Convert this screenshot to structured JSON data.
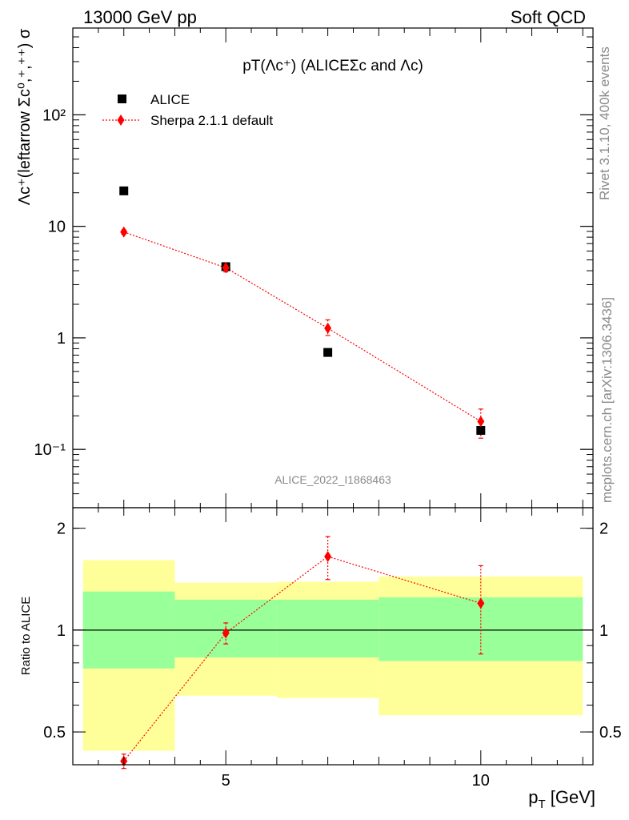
{
  "header": {
    "left": "13000 GeV pp",
    "right": "Soft QCD"
  },
  "side_labels": {
    "rivet": "Rivet 3.1.10,  400k events",
    "mcplots": "mcplots.cern.ch [arXiv:1306.3436]"
  },
  "colors": {
    "data": "#000000",
    "mc": "#ff0000",
    "band_outer": "#ffff99",
    "band_inner": "#99ff99"
  },
  "chart_data": [
    {
      "type": "scatter",
      "title": "pT(Λc⁺) (ALICEΣc and Λc)",
      "ylabel": "Λc⁺(leftarrow Σc⁰,⁺,⁺⁺) σ",
      "xlabel": "",
      "yscale": "log",
      "xlim": [
        2,
        12.2
      ],
      "ylim": [
        0.03,
        600
      ],
      "x_ticks": [
        5,
        10
      ],
      "y_ticks": [
        {
          "value": 0.1,
          "label": "10⁻¹"
        },
        {
          "value": 1,
          "label": "1"
        },
        {
          "value": 10,
          "label": "10"
        },
        {
          "value": 100,
          "label": "10²"
        }
      ],
      "legend_position": "top-left",
      "watermark": "ALICE_2022_I1868463",
      "series": [
        {
          "name": "ALICE",
          "marker": "square",
          "points": [
            {
              "x": 3,
              "y": 20.8
            },
            {
              "x": 5,
              "y": 4.35
            },
            {
              "x": 7,
              "y": 0.74
            },
            {
              "x": 10,
              "y": 0.148
            }
          ]
        },
        {
          "name": "Sherpa 2.1.1 default",
          "marker": "diamond",
          "line": "dotted",
          "points": [
            {
              "x": 3,
              "y": 8.9,
              "err_lo": 0.4,
              "err_hi": 0.4
            },
            {
              "x": 5,
              "y": 4.25,
              "err_lo": 0.35,
              "err_hi": 0.35
            },
            {
              "x": 7,
              "y": 1.22,
              "err_lo": 0.17,
              "err_hi": 0.23
            },
            {
              "x": 10,
              "y": 0.178,
              "err_lo": 0.052,
              "err_hi": 0.052
            }
          ]
        }
      ]
    },
    {
      "type": "scatter",
      "title": "",
      "ylabel": "Ratio to ALICE",
      "xlabel": "p_T [GeV]",
      "yscale": "log",
      "xlim": [
        2,
        12.2
      ],
      "ylim": [
        0.4,
        2.3
      ],
      "x_ticks": [
        5,
        10
      ],
      "y_ticks": [
        {
          "value": 0.5,
          "label": "0.5"
        },
        {
          "value": 1,
          "label": "1"
        },
        {
          "value": 2,
          "label": "2"
        }
      ],
      "reference_line": 1,
      "bands": [
        {
          "x0": 2.2,
          "x1": 4,
          "inner": [
            0.77,
            1.3
          ],
          "outer": [
            0.44,
            1.61
          ]
        },
        {
          "x0": 4,
          "x1": 6,
          "inner": [
            0.83,
            1.23
          ],
          "outer": [
            0.64,
            1.38
          ]
        },
        {
          "x0": 6,
          "x1": 8,
          "inner": [
            0.83,
            1.23
          ],
          "outer": [
            0.63,
            1.39
          ]
        },
        {
          "x0": 8,
          "x1": 12,
          "inner": [
            0.81,
            1.25
          ],
          "outer": [
            0.56,
            1.44
          ]
        }
      ],
      "series": [
        {
          "name": "Sherpa 2.1.1 default",
          "marker": "diamond",
          "line": "dotted",
          "points": [
            {
              "x": 3,
              "y": 0.41,
              "err_lo": 0.02,
              "err_hi": 0.02
            },
            {
              "x": 5,
              "y": 0.98,
              "err_lo": 0.07,
              "err_hi": 0.07
            },
            {
              "x": 7,
              "y": 1.65,
              "err_lo": 0.24,
              "err_hi": 0.24
            },
            {
              "x": 10,
              "y": 1.2,
              "err_lo": 0.35,
              "err_hi": 0.35
            }
          ]
        }
      ]
    }
  ]
}
